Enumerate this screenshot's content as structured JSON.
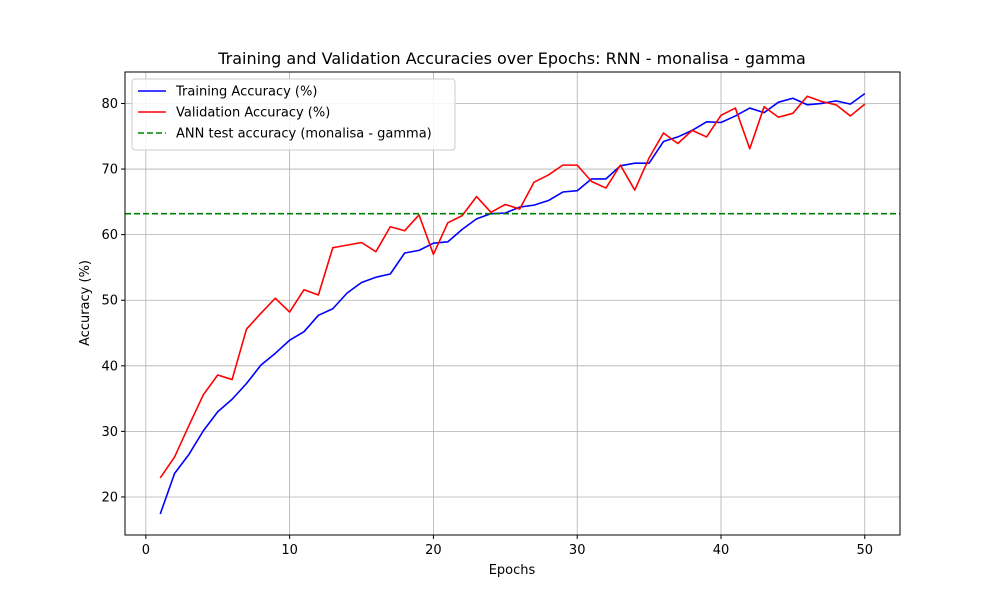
{
  "chart_data": {
    "type": "line",
    "title": "Training and Validation Accuracies over Epochs: RNN - monalisa - gamma",
    "xlabel": "Epochs",
    "ylabel": "Accuracy (%)",
    "xlim": [
      -1.45,
      52.45
    ],
    "ylim": [
      14.2,
      84.8
    ],
    "xticks": [
      0,
      10,
      20,
      30,
      40,
      50
    ],
    "yticks": [
      20,
      30,
      40,
      50,
      60,
      70,
      80
    ],
    "grid": true,
    "legend_position": "top-left",
    "x": [
      1,
      2,
      3,
      4,
      5,
      6,
      7,
      8,
      9,
      10,
      11,
      12,
      13,
      14,
      15,
      16,
      17,
      18,
      19,
      20,
      21,
      22,
      23,
      24,
      25,
      26,
      27,
      28,
      29,
      30,
      31,
      32,
      33,
      34,
      35,
      36,
      37,
      38,
      39,
      40,
      41,
      42,
      43,
      44,
      45,
      46,
      47,
      48,
      49,
      50
    ],
    "series": [
      {
        "name": "Training Accuracy (%)",
        "color": "#0000ff",
        "style": "solid",
        "values": [
          17.4,
          23.6,
          26.5,
          30.1,
          33.0,
          34.9,
          37.3,
          40.1,
          41.9,
          43.9,
          45.2,
          47.7,
          48.7,
          51.1,
          52.7,
          53.5,
          54.0,
          57.2,
          57.6,
          58.7,
          58.9,
          60.8,
          62.4,
          63.2,
          63.3,
          64.2,
          64.5,
          65.2,
          66.5,
          66.7,
          68.5,
          68.5,
          70.5,
          70.9,
          70.9,
          74.2,
          74.9,
          75.9,
          77.2,
          77.1,
          78.1,
          79.3,
          78.6,
          80.2,
          80.8,
          79.8,
          80.0,
          80.4,
          79.9,
          81.5
        ]
      },
      {
        "name": "Validation Accuracy (%)",
        "color": "#ff0000",
        "style": "solid",
        "values": [
          22.9,
          26.1,
          30.9,
          35.6,
          38.6,
          37.9,
          45.6,
          48.0,
          50.3,
          48.2,
          51.6,
          50.8,
          58.0,
          58.4,
          58.8,
          57.4,
          61.2,
          60.6,
          63.0,
          57.0,
          61.8,
          62.9,
          65.8,
          63.4,
          64.6,
          63.9,
          68.0,
          69.1,
          70.6,
          70.6,
          68.1,
          67.1,
          70.6,
          66.8,
          71.7,
          75.5,
          73.9,
          75.9,
          74.9,
          78.2,
          79.3,
          73.1,
          79.5,
          77.9,
          78.5,
          81.1,
          80.3,
          79.8,
          78.1,
          79.9
        ]
      },
      {
        "name": "ANN test accuracy (monalisa - gamma)",
        "color": "#008000",
        "style": "dashed",
        "constant": 63.2
      }
    ]
  }
}
